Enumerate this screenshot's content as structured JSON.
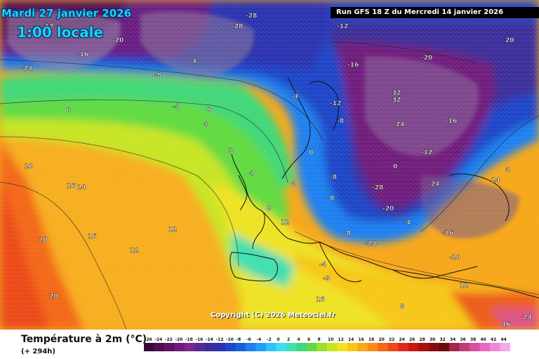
{
  "header": {
    "date": "Mardi 27 janvier 2026",
    "time": "1:00 locale",
    "run": "Run GFS 18 Z du Mercredi 14 janvier 2026"
  },
  "copyright": "Copyright (C) 2026 Meteociel.fr",
  "legend": {
    "title": "Température à 2m (°C)",
    "subtitle": "(+ 294h)",
    "scale": [
      {
        "v": "-26",
        "c": "#3a0838"
      },
      {
        "v": "-24",
        "c": "#4d0d4f"
      },
      {
        "v": "-22",
        "c": "#5f1166"
      },
      {
        "v": "-20",
        "c": "#6f1b7c"
      },
      {
        "v": "-18",
        "c": "#7e2690"
      },
      {
        "v": "-16",
        "c": "#5a2a8f"
      },
      {
        "v": "-14",
        "c": "#3b2e9a"
      },
      {
        "v": "-12",
        "c": "#2a32b0"
      },
      {
        "v": "-10",
        "c": "#1f45c8"
      },
      {
        "v": "-8",
        "c": "#1560dc"
      },
      {
        "v": "-6",
        "c": "#1a80f0"
      },
      {
        "v": "-4",
        "c": "#22a0f8"
      },
      {
        "v": "-2",
        "c": "#30c0fb"
      },
      {
        "v": "0",
        "c": "#40dcf0"
      },
      {
        "v": "2",
        "c": "#40e0b0"
      },
      {
        "v": "4",
        "c": "#40d878"
      },
      {
        "v": "6",
        "c": "#60dc40"
      },
      {
        "v": "8",
        "c": "#9ae030"
      },
      {
        "v": "10",
        "c": "#c8e620"
      },
      {
        "v": "12",
        "c": "#f0e420"
      },
      {
        "v": "14",
        "c": "#f8c818"
      },
      {
        "v": "16",
        "c": "#f8a818"
      },
      {
        "v": "18",
        "c": "#f88818"
      },
      {
        "v": "20",
        "c": "#f46818"
      },
      {
        "v": "22",
        "c": "#ec4818"
      },
      {
        "v": "24",
        "c": "#e02818"
      },
      {
        "v": "26",
        "c": "#c81810"
      },
      {
        "v": "28",
        "c": "#a81010"
      },
      {
        "v": "30",
        "c": "#880c10"
      },
      {
        "v": "32",
        "c": "#700810"
      },
      {
        "v": "34",
        "c": "#a02850"
      },
      {
        "v": "36",
        "c": "#c03c78"
      },
      {
        "v": "38",
        "c": "#d850a0"
      },
      {
        "v": "40",
        "c": "#e868c0"
      },
      {
        "v": "42",
        "c": "#f088d8"
      },
      {
        "v": "44",
        "c": "#f8a8ec"
      }
    ]
  },
  "map_labels": [
    "-24",
    "-20",
    "-16",
    "-12",
    "-8",
    "-4",
    "0",
    "4",
    "8",
    "12",
    "16",
    "20",
    "24",
    "-28",
    "-32",
    "-24",
    "-20",
    "-16",
    "-12",
    "-8",
    "-4",
    "0",
    "4",
    "8",
    "12",
    "16",
    "20",
    "-28",
    "-24",
    "-12",
    "-16",
    "-20",
    "-8",
    "-4",
    "0",
    "4",
    "12",
    "8",
    "16",
    "20",
    "24",
    "-12",
    "-4",
    "0",
    "-8",
    "-16",
    "-20",
    "-24",
    "-28",
    "-32",
    "12",
    "16",
    "20",
    "24",
    "-4",
    "-8",
    "4",
    "8"
  ]
}
